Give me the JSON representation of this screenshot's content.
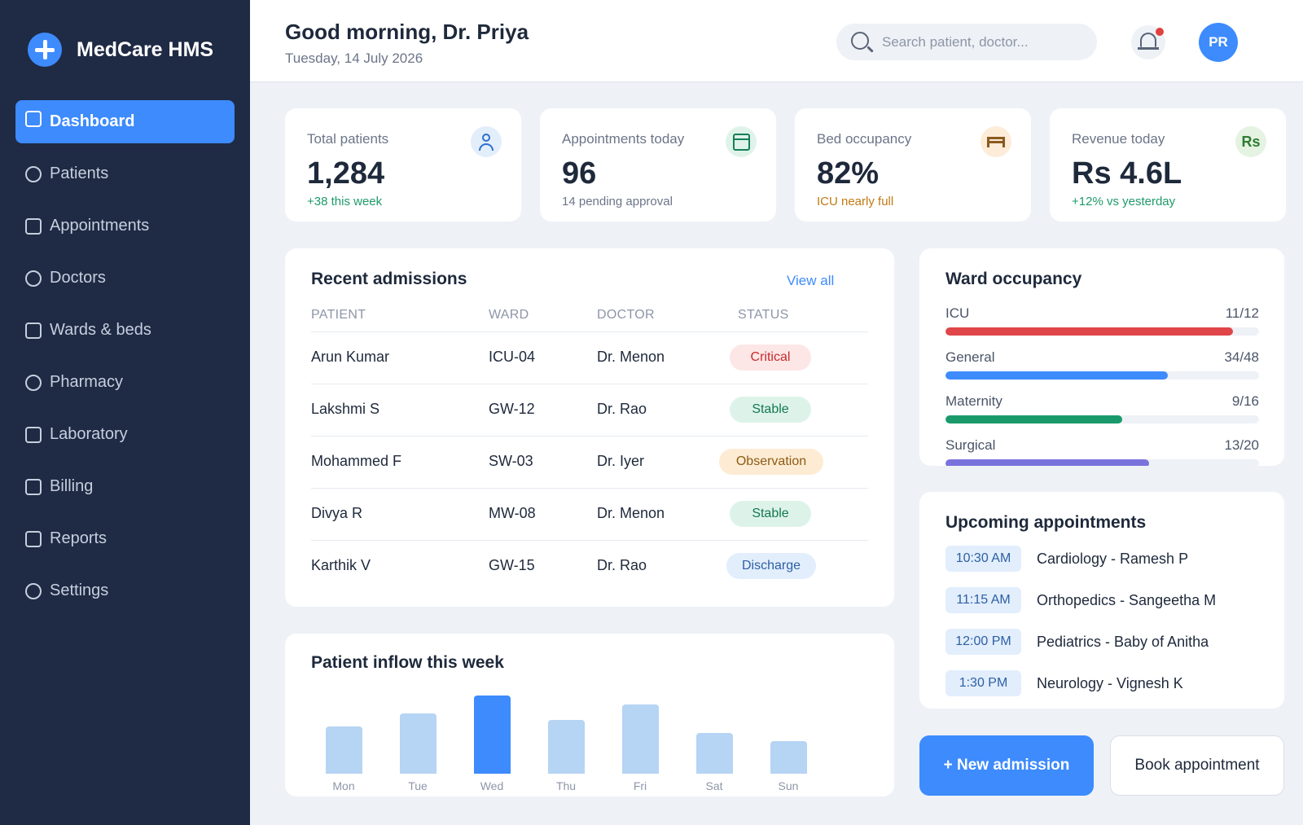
{
  "app": {
    "name": "MedCare HMS"
  },
  "sidebar": {
    "items": [
      {
        "label": "Dashboard",
        "icon": "square-icon"
      },
      {
        "label": "Patients",
        "icon": "circle-icon"
      },
      {
        "label": "Appointments",
        "icon": "square-icon"
      },
      {
        "label": "Doctors",
        "icon": "circle-icon"
      },
      {
        "label": "Wards & beds",
        "icon": "square-icon"
      },
      {
        "label": "Pharmacy",
        "icon": "circle-icon"
      },
      {
        "label": "Laboratory",
        "icon": "square-icon"
      },
      {
        "label": "Billing",
        "icon": "square-icon"
      },
      {
        "label": "Reports",
        "icon": "square-icon"
      },
      {
        "label": "Settings",
        "icon": "circle-icon"
      }
    ],
    "active_index": 0
  },
  "header": {
    "greeting": "Good morning, Dr. Priya",
    "date": "Tuesday, 14 July 2026",
    "search_placeholder": "Search patient, doctor...",
    "avatar_initials": "PR",
    "has_notification": true
  },
  "stats": [
    {
      "label": "Total patients",
      "value": "1,284",
      "sub": "+38 this week",
      "sub_color": "#1e9a6a",
      "icon": "user-icon",
      "icon_bg": "#e3eefb"
    },
    {
      "label": "Appointments today",
      "value": "96",
      "sub": "14 pending approval",
      "sub_color": "#6b7588",
      "icon": "calendar-icon",
      "icon_bg": "#dff3ea"
    },
    {
      "label": "Bed occupancy",
      "value": "82%",
      "sub": "ICU nearly full",
      "sub_color": "#c07a12",
      "icon": "bed-icon",
      "icon_bg": "#fdecd8"
    },
    {
      "label": "Revenue today",
      "value": "Rs 4.6L",
      "sub": "+12% vs yesterday",
      "sub_color": "#1e9a6a",
      "icon_text": "Rs",
      "icon": "rupee-icon",
      "icon_bg": "#e5f3e2"
    }
  ],
  "admissions": {
    "title": "Recent admissions",
    "view_all": "View all",
    "columns": [
      "PATIENT",
      "WARD",
      "DOCTOR",
      "STATUS"
    ],
    "rows": [
      {
        "patient": "Arun Kumar",
        "ward": "ICU-04",
        "doctor": "Dr. Menon",
        "status": "Critical",
        "status_type": "critical"
      },
      {
        "patient": "Lakshmi S",
        "ward": "GW-12",
        "doctor": "Dr. Rao",
        "status": "Stable",
        "status_type": "stable"
      },
      {
        "patient": "Mohammed F",
        "ward": "SW-03",
        "doctor": "Dr. Iyer",
        "status": "Observation",
        "status_type": "obs"
      },
      {
        "patient": "Divya R",
        "ward": "MW-08",
        "doctor": "Dr. Menon",
        "status": "Stable",
        "status_type": "stable"
      },
      {
        "patient": "Karthik V",
        "ward": "GW-15",
        "doctor": "Dr. Rao",
        "status": "Discharge",
        "status_type": "dis"
      }
    ]
  },
  "ward_occupancy": {
    "title": "Ward occupancy",
    "wards": [
      {
        "name": "ICU",
        "count": "11/12",
        "fraction": 0.917,
        "color": "#e0454a"
      },
      {
        "name": "General",
        "count": "34/48",
        "fraction": 0.708,
        "color": "#3d8bfd"
      },
      {
        "name": "Maternity",
        "count": "9/16",
        "fraction": 0.5625,
        "color": "#1a9a6b"
      },
      {
        "name": "Surgical",
        "count": "13/20",
        "fraction": 0.65,
        "color": "#7a72dc"
      }
    ]
  },
  "appointments": {
    "title": "Upcoming appointments",
    "items": [
      {
        "time": "10:30 AM",
        "desc": "Cardiology - Ramesh P"
      },
      {
        "time": "11:15 AM",
        "desc": "Orthopedics - Sangeetha M"
      },
      {
        "time": "12:00 PM",
        "desc": "Pediatrics - Baby of Anitha"
      },
      {
        "time": "1:30 PM",
        "desc": "Neurology - Vignesh K"
      }
    ]
  },
  "inflow": {
    "title": "Patient inflow this week"
  },
  "chart_data": {
    "type": "bar",
    "title": "Patient inflow this week",
    "categories": [
      "Mon",
      "Tue",
      "Wed",
      "Thu",
      "Fri",
      "Sat",
      "Sun"
    ],
    "values": [
      58,
      74,
      96,
      66,
      85,
      50,
      40
    ],
    "highlight_index": 2,
    "bar_color": "#b6d4f4",
    "highlight_color": "#3d8bfd"
  },
  "actions": {
    "new_admission": "+ New admission",
    "book_appointment": "Book appointment"
  }
}
